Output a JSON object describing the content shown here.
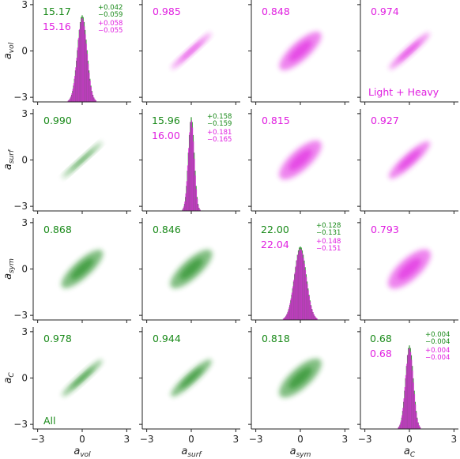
{
  "chart_data": {
    "type": "corner",
    "parameters": [
      {
        "sym": "a",
        "sub": "vol"
      },
      {
        "sym": "a",
        "sub": "surf"
      },
      {
        "sym": "a",
        "sub": "sym"
      },
      {
        "sym": "a",
        "sub": "C"
      }
    ],
    "axis_range": [
      -3.3,
      3.3
    ],
    "ticks": [
      -3,
      0,
      3
    ],
    "tick_labels": [
      "−3",
      "0",
      "3"
    ],
    "colors": {
      "all": "#1a8a1a",
      "light_heavy": "#e020e0"
    },
    "labels": {
      "all": "All",
      "light_heavy": "Light + Heavy"
    },
    "diagonal": [
      {
        "all": {
          "mean": "15.17",
          "plus": "+0.042",
          "minus": "−0.059"
        },
        "light_heavy": {
          "mean": "15.16",
          "plus": "+0.058",
          "minus": "−0.055"
        },
        "sigma_all": 0.32,
        "sigma_lh": 0.32,
        "peak": 0.85
      },
      {
        "all": {
          "mean": "15.96",
          "plus": "+0.158",
          "minus": "−0.159"
        },
        "light_heavy": {
          "mean": "16.00",
          "plus": "+0.181",
          "minus": "−0.165"
        },
        "sigma_all": 0.2,
        "sigma_lh": 0.2,
        "peak": 0.92
      },
      {
        "all": {
          "mean": "22.00",
          "plus": "+0.128",
          "minus": "−0.131"
        },
        "light_heavy": {
          "mean": "22.04",
          "plus": "+0.148",
          "minus": "−0.151"
        },
        "sigma_all": 0.4,
        "sigma_lh": 0.4,
        "peak": 0.72
      },
      {
        "all": {
          "mean": "0.68",
          "plus": "+0.004",
          "minus": "−0.004"
        },
        "light_heavy": {
          "mean": "0.68",
          "plus": "+0.004",
          "minus": "−0.004"
        },
        "sigma_all": 0.26,
        "sigma_lh": 0.26,
        "peak": 0.82
      }
    ],
    "lower_triangle_all": [
      {
        "row": 1,
        "col": 0,
        "r": "0.990"
      },
      {
        "row": 2,
        "col": 0,
        "r": "0.868"
      },
      {
        "row": 2,
        "col": 1,
        "r": "0.846"
      },
      {
        "row": 3,
        "col": 0,
        "r": "0.978"
      },
      {
        "row": 3,
        "col": 1,
        "r": "0.944"
      },
      {
        "row": 3,
        "col": 2,
        "r": "0.818"
      }
    ],
    "upper_triangle_light_heavy": [
      {
        "row": 0,
        "col": 1,
        "r": "0.985"
      },
      {
        "row": 0,
        "col": 2,
        "r": "0.848"
      },
      {
        "row": 0,
        "col": 3,
        "r": "0.974"
      },
      {
        "row": 1,
        "col": 2,
        "r": "0.815"
      },
      {
        "row": 1,
        "col": 3,
        "r": "0.927"
      },
      {
        "row": 2,
        "col": 3,
        "r": "0.793"
      }
    ]
  }
}
